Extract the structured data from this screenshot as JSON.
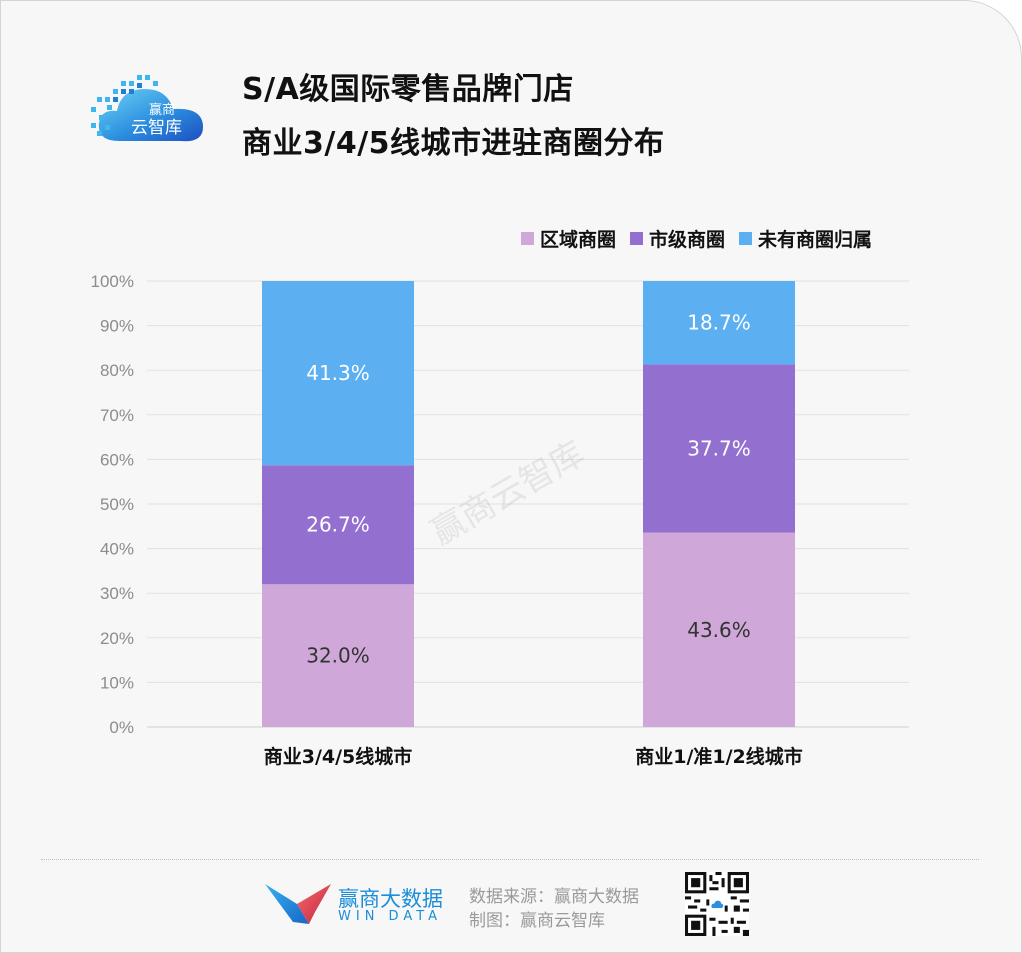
{
  "title": {
    "line1": "S/A级国际零售品牌门店",
    "line2": "商业3/4/5线城市进驻商圈分布"
  },
  "logo": {
    "text_top": "赢商",
    "text_bottom": "云智库"
  },
  "watermark": "赢商云智库",
  "colors": {
    "district": "#cfa8d9",
    "city": "#9370d0",
    "none": "#5cb0f2",
    "background": "#f7f7f7",
    "brand_blue": "#1c8ed8",
    "brand_red": "#e0455a"
  },
  "chart_data": {
    "type": "bar",
    "stacked": true,
    "categories": [
      "商业3/4/5线城市",
      "商业1/准1/2线城市"
    ],
    "series": [
      {
        "name": "区域商圈",
        "values": [
          32.0,
          43.6
        ],
        "labels": [
          "32.0%",
          "43.6%"
        ],
        "color": "#cfa8d9"
      },
      {
        "name": "市级商圈",
        "values": [
          26.7,
          37.7
        ],
        "labels": [
          "26.7%",
          "37.7%"
        ],
        "color": "#9370d0"
      },
      {
        "name": "未有商圈归属",
        "values": [
          41.3,
          18.7
        ],
        "labels": [
          "41.3%",
          "18.7%"
        ],
        "color": "#5cb0f2"
      }
    ],
    "ylim": [
      0,
      100
    ],
    "yticks": [
      "0%",
      "10%",
      "20%",
      "30%",
      "40%",
      "50%",
      "60%",
      "70%",
      "80%",
      "90%",
      "100%"
    ],
    "grid": true,
    "legend_position": "top-right"
  },
  "footer": {
    "brand_cn": "赢商大数据",
    "brand_en": "WIN DATA",
    "source_line": "数据来源：赢商大数据",
    "credit_line": "制图：赢商云智库"
  }
}
